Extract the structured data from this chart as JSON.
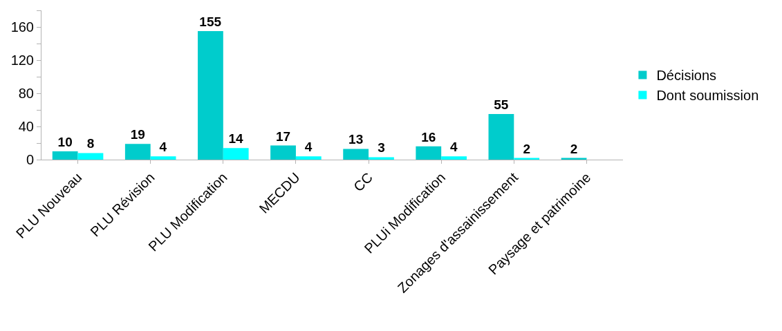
{
  "chart_data": {
    "type": "bar",
    "categories": [
      "PLU Nouveau",
      "PLU Révision",
      "PLU Modification",
      "MECDU",
      "CC",
      "PLUi Modification",
      "Zonages d'assainissement",
      "Paysage et patrimoine"
    ],
    "series": [
      {
        "name": "Décisions",
        "color": "#00cccc",
        "values": [
          10,
          19,
          155,
          17,
          13,
          16,
          55,
          2
        ]
      },
      {
        "name": "Dont soumission",
        "color": "#00ffff",
        "values": [
          8,
          4,
          14,
          4,
          3,
          4,
          2,
          null
        ]
      }
    ],
    "ylim": [
      0,
      180
    ],
    "yticks": [
      0,
      {
        "value": 20,
        "label": null
      },
      40,
      {
        "value": 60,
        "label": null
      },
      80,
      {
        "value": 100,
        "label": null
      },
      120,
      {
        "value": 140,
        "label": null
      },
      160,
      {
        "value": 180,
        "label": null
      }
    ],
    "data_labels": true,
    "grid": false,
    "legend": "right"
  }
}
